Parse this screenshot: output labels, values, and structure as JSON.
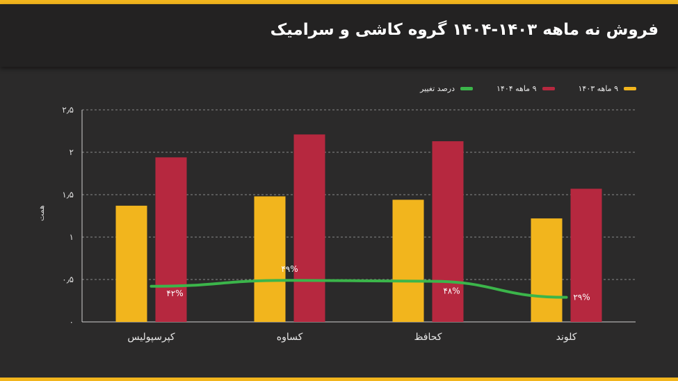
{
  "header": {
    "title": "فروش نه ماهه ۱۴۰۳-۱۴۰۴ گروه کاشی و سرامیک"
  },
  "colors": {
    "accent": "#f2b51d",
    "series_1403": "#f2b51d",
    "series_1404": "#b6283f",
    "change_line": "#3bb54a"
  },
  "chart_data": {
    "type": "bar",
    "title": "فروش نه ماهه ۱۴۰۳-۱۴۰۴ گروه کاشی و سرامیک",
    "xlabel": "",
    "ylabel": "همت",
    "ylim": [
      0,
      2.5
    ],
    "yticks": [
      0,
      0.5,
      1,
      1.5,
      2,
      2.5
    ],
    "ytick_labels": [
      "۰",
      "۰٫۵",
      "۱",
      "۱٫۵",
      "۲",
      "۲٫۵"
    ],
    "categories": [
      "کپرسپولیس",
      "کساوه",
      "کحافظ",
      "کلوند"
    ],
    "series": [
      {
        "name": "۹ ماهه ۱۴۰۳",
        "values": [
          1.37,
          1.48,
          1.44,
          1.22
        ]
      },
      {
        "name": "۹ ماهه ۱۴۰۴",
        "values": [
          1.94,
          2.21,
          2.13,
          1.57
        ]
      }
    ],
    "change_series": {
      "name": "درصد تغییر",
      "type": "line",
      "values": [
        0.42,
        0.49,
        0.48,
        0.29
      ],
      "labels": [
        "۴۲%",
        "۴۹%",
        "۴۸%",
        "۲۹%"
      ]
    },
    "legend_position": "top-right",
    "grid": true
  }
}
